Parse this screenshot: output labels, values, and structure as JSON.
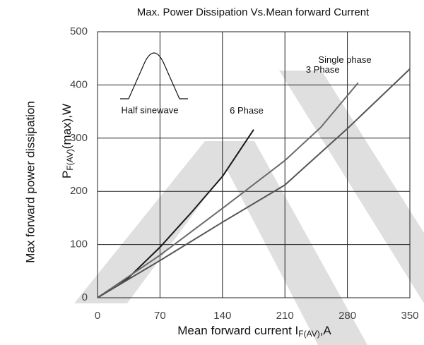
{
  "chart_data": {
    "type": "line",
    "title": "Max. Power Dissipation Vs.Mean forward Current",
    "ylabel_outer": "Max forward power dissipation",
    "ylabel": {
      "main": "P",
      "sub": "F(AV)",
      "rest": "(max),W"
    },
    "xlabel": {
      "main": "Mean forward current I",
      "sub": "F(AV)",
      "rest": ",A"
    },
    "inset_label": "Half sinewave",
    "xlim": [
      0,
      350
    ],
    "ylim": [
      0,
      500
    ],
    "xticks": [
      0,
      70,
      140,
      210,
      280,
      350
    ],
    "yticks": [
      0,
      100,
      200,
      300,
      400,
      500
    ],
    "grid": true,
    "series": [
      {
        "name": "6 Phase",
        "color": "#1a1a1a",
        "x": [
          0,
          35,
          70,
          105,
          140,
          175
        ],
        "y": [
          0,
          38,
          95,
          160,
          228,
          316
        ]
      },
      {
        "name": "3 Phase",
        "color": "#6a6a6a",
        "x": [
          0,
          70,
          140,
          210,
          250,
          292
        ],
        "y": [
          0,
          80,
          168,
          258,
          320,
          404
        ]
      },
      {
        "name": "Single phase",
        "color": "#555555",
        "x": [
          0,
          70,
          140,
          210,
          280,
          350
        ],
        "y": [
          0,
          70,
          142,
          212,
          318,
          430
        ]
      }
    ]
  }
}
